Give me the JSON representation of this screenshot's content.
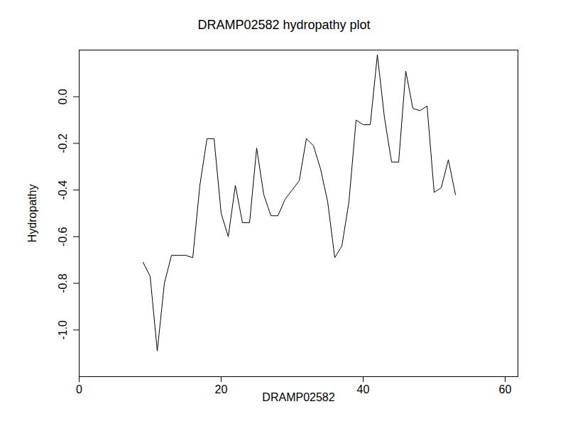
{
  "chart_data": {
    "type": "line",
    "title": "DRAMP02582 hydropathy plot",
    "x_label": "DRAMP02582",
    "y_label": "Hydropathy",
    "x": [
      9,
      10,
      11,
      12,
      13,
      14,
      15,
      16,
      17,
      18,
      19,
      20,
      21,
      22,
      23,
      24,
      25,
      26,
      27,
      28,
      29,
      30,
      31,
      32,
      33,
      34,
      35,
      36,
      37,
      38,
      39,
      40,
      41,
      42,
      43,
      44,
      45,
      46,
      47,
      48,
      49,
      50,
      51,
      52,
      53
    ],
    "values": [
      -0.71,
      -0.77,
      -1.09,
      -0.8,
      -0.68,
      -0.68,
      -0.68,
      -0.69,
      -0.38,
      -0.18,
      -0.18,
      -0.5,
      -0.6,
      -0.38,
      -0.54,
      -0.54,
      -0.22,
      -0.42,
      -0.51,
      -0.51,
      -0.44,
      -0.4,
      -0.36,
      -0.18,
      -0.21,
      -0.31,
      -0.45,
      -0.69,
      -0.64,
      -0.45,
      -0.1,
      -0.12,
      -0.12,
      0.18,
      -0.09,
      -0.28,
      -0.28,
      0.11,
      -0.05,
      -0.06,
      -0.04,
      -0.41,
      -0.39,
      -0.27,
      -0.42
    ],
    "color": "#000000",
    "xlim": [
      0,
      61.8
    ],
    "xticks": [
      0,
      20,
      40,
      60
    ],
    "ylim": [
      -1.2,
      0.2
    ],
    "yticks": [
      {
        "value": -1.0,
        "label": "-1.0"
      },
      -0.8,
      -0.6,
      -0.4,
      -0.2,
      {
        "value": 0,
        "label": "0.0"
      }
    ],
    "grid": false
  }
}
